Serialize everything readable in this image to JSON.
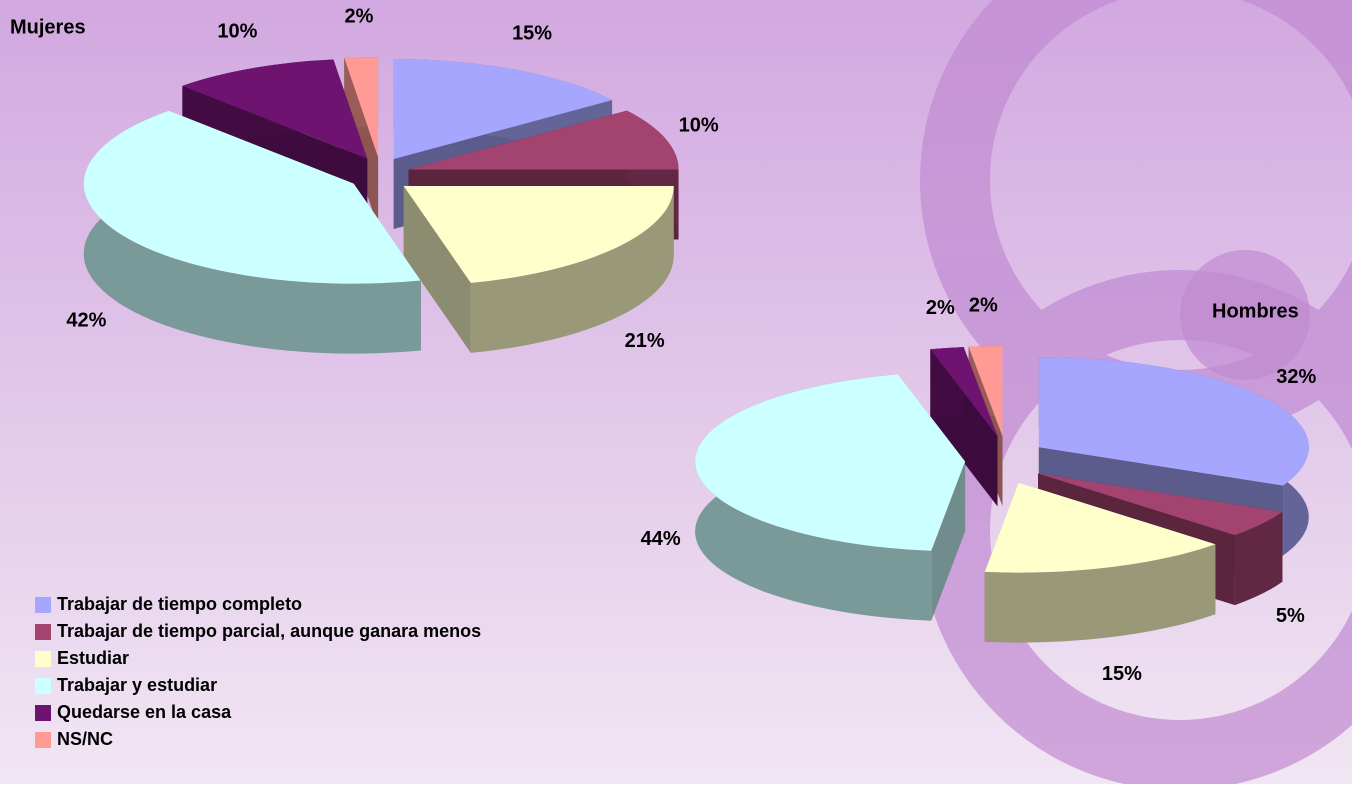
{
  "chart_data": [
    {
      "type": "pie",
      "title": "Mujeres",
      "categories": [
        "Trabajar de tiempo completo",
        "Trabajar de tiempo parcial, aunque ganara menos",
        "Estudiar",
        "Trabajar y estudiar",
        "Quedarse en la casa",
        "NS/NC"
      ],
      "colors": [
        "#a6a6ff",
        "#a3436f",
        "#ffffcc",
        "#ccffff",
        "#6e1470",
        "#ff9a94"
      ],
      "values": [
        15,
        10,
        21,
        42,
        10,
        2
      ],
      "value_labels": [
        "15%",
        "10%",
        "21%",
        "42%",
        "10%",
        "2%"
      ]
    },
    {
      "type": "pie",
      "title": "Hombres",
      "values": [
        32,
        5,
        15,
        44,
        2,
        2
      ],
      "value_labels": [
        "32%",
        "5%",
        "15%",
        "44%",
        "2%",
        "2%"
      ]
    }
  ]
}
